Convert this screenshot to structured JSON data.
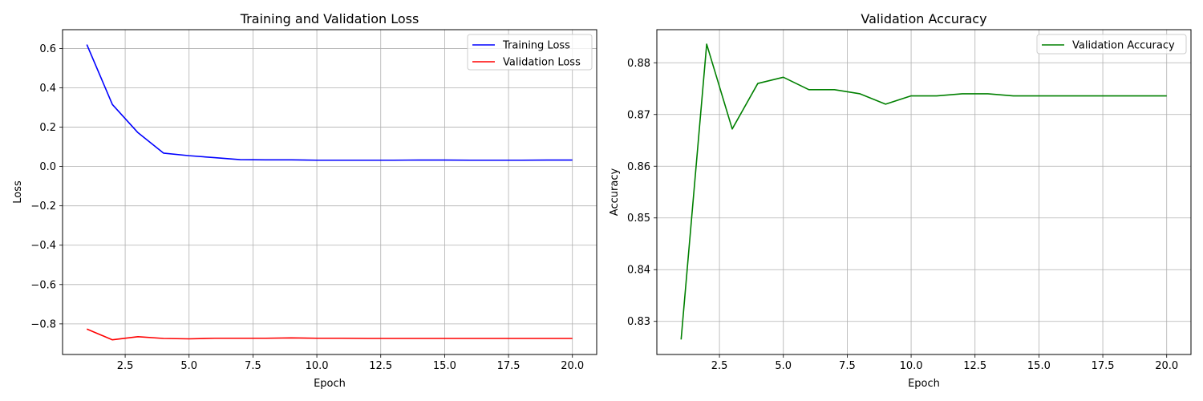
{
  "chart_data": [
    {
      "type": "line",
      "title": "Training and Validation Loss",
      "xlabel": "Epoch",
      "ylabel": "Loss",
      "xlim": [
        0.05,
        20.95
      ],
      "ylim": [
        -0.9555,
        0.6955
      ],
      "xticks": [
        2.5,
        5.0,
        7.5,
        10.0,
        12.5,
        15.0,
        17.5,
        20.0
      ],
      "xtick_labels": [
        "2.5",
        "5.0",
        "7.5",
        "10.0",
        "12.5",
        "15.0",
        "17.5",
        "20.0"
      ],
      "yticks": [
        -0.8,
        -0.6,
        -0.4,
        -0.2,
        0.0,
        0.2,
        0.4,
        0.6
      ],
      "ytick_labels": [
        "−0.8",
        "−0.6",
        "−0.4",
        "−0.2",
        "0.0",
        "0.2",
        "0.4",
        "0.6"
      ],
      "grid": true,
      "legend_position": "upper-right",
      "x": [
        1,
        2,
        3,
        4,
        5,
        6,
        7,
        8,
        9,
        10,
        11,
        12,
        13,
        14,
        15,
        16,
        17,
        18,
        19,
        20
      ],
      "series": [
        {
          "name": "Training Loss",
          "color": "#0000ff",
          "values": [
            0.62,
            0.315,
            0.172,
            0.068,
            0.055,
            0.045,
            0.035,
            0.034,
            0.034,
            0.032,
            0.032,
            0.032,
            0.032,
            0.033,
            0.033,
            0.032,
            0.032,
            0.032,
            0.033,
            0.033
          ]
        },
        {
          "name": "Validation Loss",
          "color": "#ff0000",
          "values": [
            -0.826,
            -0.881,
            -0.865,
            -0.874,
            -0.876,
            -0.873,
            -0.873,
            -0.873,
            -0.871,
            -0.873,
            -0.873,
            -0.874,
            -0.874,
            -0.874,
            -0.874,
            -0.874,
            -0.874,
            -0.874,
            -0.874,
            -0.874
          ]
        }
      ]
    },
    {
      "type": "line",
      "title": "Validation Accuracy",
      "xlabel": "Epoch",
      "ylabel": "Accuracy",
      "xlim": [
        0.05,
        20.95
      ],
      "ylim": [
        0.8236,
        0.8864
      ],
      "xticks": [
        2.5,
        5.0,
        7.5,
        10.0,
        12.5,
        15.0,
        17.5,
        20.0
      ],
      "xtick_labels": [
        "2.5",
        "5.0",
        "7.5",
        "10.0",
        "12.5",
        "15.0",
        "17.5",
        "20.0"
      ],
      "yticks": [
        0.83,
        0.84,
        0.85,
        0.86,
        0.87,
        0.88
      ],
      "ytick_labels": [
        "0.83",
        "0.84",
        "0.85",
        "0.86",
        "0.87",
        "0.88"
      ],
      "grid": true,
      "legend_position": "upper-right",
      "x": [
        1,
        2,
        3,
        4,
        5,
        6,
        7,
        8,
        9,
        10,
        11,
        12,
        13,
        14,
        15,
        16,
        17,
        18,
        19,
        20
      ],
      "series": [
        {
          "name": "Validation Accuracy",
          "color": "#008000",
          "values": [
            0.8265,
            0.8836,
            0.8672,
            0.876,
            0.8772,
            0.8748,
            0.8748,
            0.874,
            0.872,
            0.8736,
            0.8736,
            0.874,
            0.874,
            0.8736,
            0.8736,
            0.8736,
            0.8736,
            0.8736,
            0.8736,
            0.8736
          ]
        }
      ]
    }
  ]
}
